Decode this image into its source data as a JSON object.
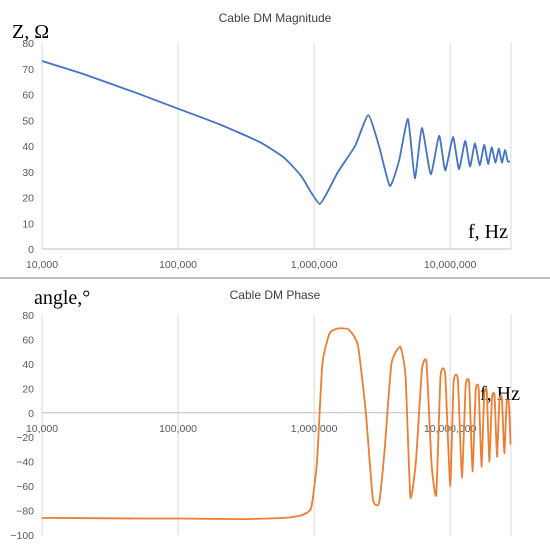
{
  "chart_data": [
    {
      "type": "line",
      "title": "Cable DM Magnitude",
      "ylabel": "Z, Ω",
      "xlabel": "f, Hz",
      "x_scale": "log",
      "xlim": [
        10000,
        28000000
      ],
      "ylim": [
        0,
        80
      ],
      "x_ticks": [
        10000,
        100000,
        1000000,
        10000000
      ],
      "x_tick_labels": [
        "10,000",
        "100,000",
        "1,000,000",
        "10,000,000"
      ],
      "y_ticks": [
        0,
        10,
        20,
        30,
        40,
        50,
        60,
        70,
        80
      ],
      "y_tick_labels": [
        "0",
        "10",
        "20",
        "30",
        "40",
        "50",
        "60",
        "70",
        "80"
      ],
      "grid": "vertical",
      "color": "#4472C4",
      "series": [
        {
          "x": [
            10000,
            20000,
            50000,
            100000,
            200000,
            400000,
            600000,
            800000,
            950000,
            1100000,
            1250000,
            1500000,
            2000000,
            2500000,
            3000000,
            3600000,
            4200000,
            4900000,
            5500000,
            6200000,
            7200000,
            8300000,
            9200000,
            10500000,
            11600000,
            12900000,
            14000000,
            15200000,
            16500000,
            17800000,
            19000000,
            20200000,
            21500000,
            22800000,
            24000000,
            25300000,
            26500000,
            27500000
          ],
          "y": [
            73,
            68,
            60.5,
            54.5,
            48.5,
            41.5,
            35.5,
            28.5,
            22,
            17.5,
            22,
            30,
            40,
            52,
            40,
            24.5,
            34,
            50.5,
            27.5,
            47,
            29,
            44,
            30.5,
            43.5,
            31,
            42,
            32,
            41,
            32.5,
            40.5,
            33,
            39.5,
            33.5,
            39,
            33.5,
            38.5,
            34,
            34
          ]
        }
      ]
    },
    {
      "type": "line",
      "title": "Cable DM Phase",
      "ylabel": "angle,°",
      "xlabel": "f, Hz",
      "x_scale": "log",
      "xlim": [
        10000,
        28000000
      ],
      "ylim": [
        -100,
        80
      ],
      "x_ticks": [
        10000,
        100000,
        1000000,
        10000000
      ],
      "x_tick_labels": [
        "10,000",
        "100,000",
        "1,000,000",
        "10,000,000"
      ],
      "y_ticks": [
        -100,
        -80,
        -60,
        -40,
        -20,
        0,
        20,
        40,
        60,
        80
      ],
      "y_tick_labels": [
        "−100",
        "−80",
        "−60",
        "−40",
        "−20",
        "0",
        "20",
        "40",
        "60",
        "80"
      ],
      "grid": "vertical",
      "color": "#ED7D31",
      "series": [
        {
          "x": [
            10000,
            50000,
            100000,
            300000,
            600000,
            800000,
            950000,
            1050000,
            1150000,
            1300000,
            1500000,
            1800000,
            2100000,
            2400000,
            2700000,
            3000000,
            3300000,
            3700000,
            4300000,
            4700000,
            5100000,
            5600000,
            6200000,
            6700000,
            7300000,
            7900000,
            8500000,
            9200000,
            10000000,
            10600000,
            11400000,
            12200000,
            13000000,
            13800000,
            14600000,
            15400000,
            16200000,
            17000000,
            17800000,
            18600000,
            19400000,
            20300000,
            21200000,
            22100000,
            23000000,
            24000000,
            25000000,
            26000000,
            27000000,
            27800000
          ],
          "y": [
            -86,
            -86.5,
            -86.5,
            -87,
            -86,
            -84,
            -78,
            -40,
            40,
            65,
            69,
            68,
            55,
            0,
            -70,
            -74,
            -30,
            40,
            54,
            30,
            -69,
            -40,
            35,
            41,
            -42,
            -67,
            30,
            31,
            -60,
            25,
            27,
            -53,
            22,
            24,
            -48,
            18,
            20,
            -44,
            15,
            17,
            -40,
            12,
            14,
            -36,
            10,
            12,
            -33,
            8,
            8,
            -26
          ]
        }
      ]
    }
  ]
}
